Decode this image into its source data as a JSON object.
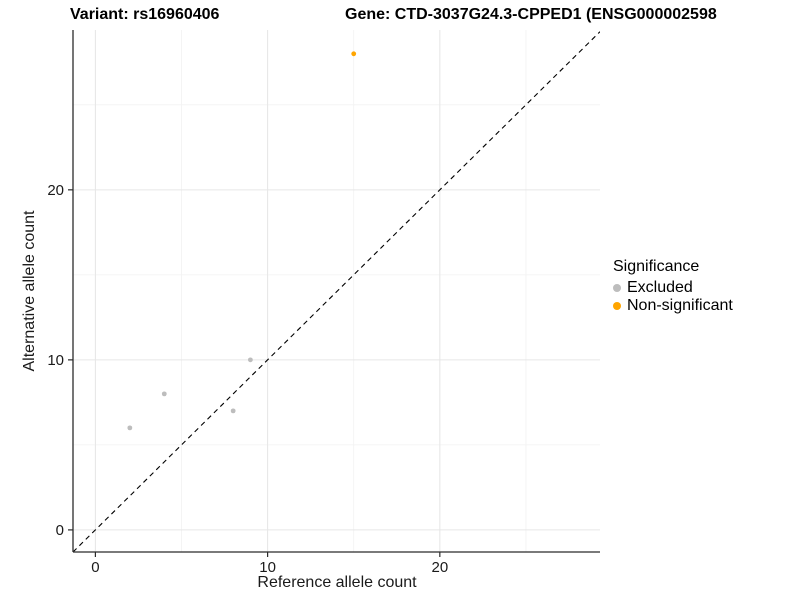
{
  "header": {
    "title_left": "Variant: rs16960406",
    "title_right": "Gene: CTD-3037G24.3-CPPED1 (ENSG000002598"
  },
  "chart_data": {
    "type": "scatter",
    "xlabel": "Reference allele count",
    "ylabel": "Alternative allele count",
    "xlim": [
      -1.3,
      29.3
    ],
    "ylim": [
      -1.3,
      29.4
    ],
    "x_ticks": [
      0,
      10,
      20
    ],
    "y_ticks": [
      0,
      10,
      20
    ],
    "x_minor_ticks": [
      5,
      15,
      25
    ],
    "y_minor_ticks": [
      5,
      15,
      25
    ],
    "grid": true,
    "identity_line": {
      "type": "y=x",
      "style": "dashed",
      "color": "#000000"
    },
    "series": [
      {
        "name": "Excluded",
        "color": "#bdbdbd",
        "points": [
          [
            2,
            6
          ],
          [
            4,
            8
          ],
          [
            8,
            7
          ],
          [
            9,
            10
          ]
        ]
      },
      {
        "name": "Non-significant",
        "color": "#ffa500",
        "points": [
          [
            15,
            28
          ]
        ]
      }
    ],
    "legend": {
      "title": "Significance",
      "position": "right",
      "items": [
        {
          "label": "Excluded",
          "color": "#bdbdbd"
        },
        {
          "label": "Non-significant",
          "color": "#ffa500"
        }
      ]
    },
    "style": {
      "axis_color": "#2b2b2b",
      "tick_label_color": "#1a1a1a",
      "major_grid_color": "#e6e6e6",
      "minor_grid_color": "#f2f2f2",
      "point_radius": 2.4
    }
  }
}
